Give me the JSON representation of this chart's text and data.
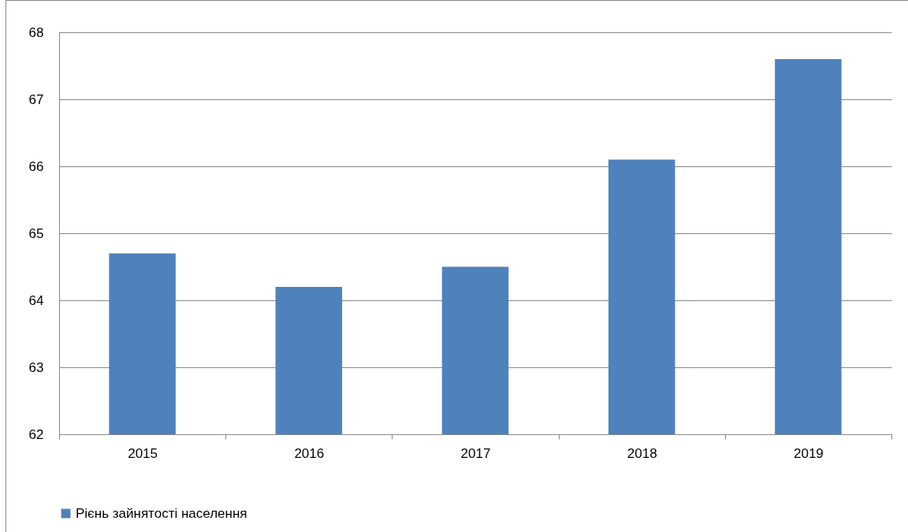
{
  "chart_data": {
    "type": "bar",
    "categories": [
      "2015",
      "2016",
      "2017",
      "2018",
      "2019"
    ],
    "series": [
      {
        "name": "Рієнь зайнятості населення",
        "color": "#4f81bd",
        "values": [
          64.7,
          64.2,
          64.5,
          66.1,
          67.6
        ]
      }
    ],
    "ylim": [
      62,
      68
    ],
    "yticks": [
      62,
      63,
      64,
      65,
      66,
      67,
      68
    ],
    "grid": "y",
    "legend": "bottom"
  }
}
